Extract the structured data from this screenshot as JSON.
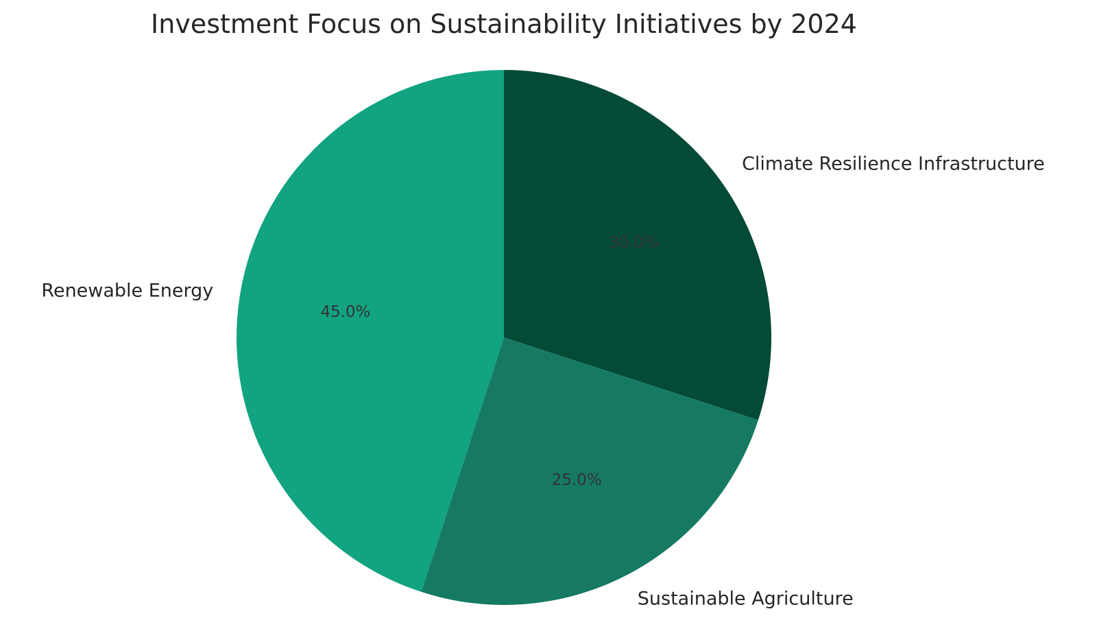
{
  "chart_data": {
    "type": "pie",
    "title": "Investment Focus on Sustainability Initiatives by 2024",
    "slices": [
      {
        "label": "Climate Resilience Infrastructure",
        "value": 30.0,
        "pct_label": "30.0%",
        "color": "#034a37"
      },
      {
        "label": "Sustainable Agriculture",
        "value": 25.0,
        "pct_label": "25.0%",
        "color": "#167a63"
      },
      {
        "label": "Renewable Energy",
        "value": 45.0,
        "pct_label": "45.0%",
        "color": "#12a381"
      }
    ],
    "start_angle": "12 o'clock",
    "direction": "clockwise",
    "pct_label_color": "#333333"
  }
}
